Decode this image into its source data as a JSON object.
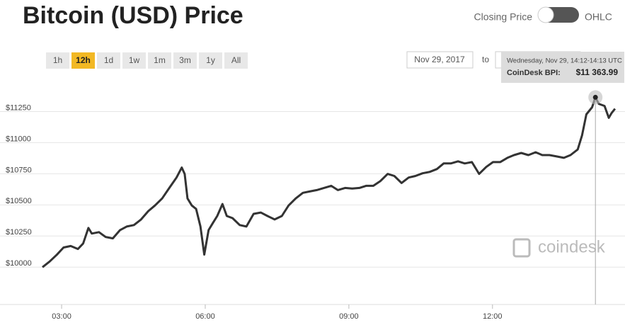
{
  "ui": {
    "title": "Bitcoin (USD) Price",
    "toggle": {
      "left": "Closing Price",
      "right": "OHLC"
    },
    "ranges": [
      "1h",
      "12h",
      "1d",
      "1w",
      "1m",
      "3m",
      "1y",
      "All"
    ],
    "active_range": 1,
    "date_from": "Nov 29, 2017",
    "date_to_label": "to",
    "watermark": "coindesk"
  },
  "chart_data": {
    "type": "line",
    "x": [
      2.6,
      2.75,
      2.9,
      3.04,
      3.19,
      3.34,
      3.45,
      3.56,
      3.63,
      3.78,
      3.92,
      4.07,
      4.22,
      4.36,
      4.51,
      4.66,
      4.81,
      4.95,
      5.1,
      5.25,
      5.4,
      5.51,
      5.57,
      5.63,
      5.72,
      5.81,
      5.9,
      5.98,
      6.07,
      6.16,
      6.25,
      6.36,
      6.45,
      6.57,
      6.72,
      6.86,
      7.01,
      7.16,
      7.3,
      7.45,
      7.6,
      7.74,
      7.89,
      8.04,
      8.18,
      8.33,
      8.48,
      8.63,
      8.77,
      8.92,
      9.07,
      9.22,
      9.36,
      9.51,
      9.66,
      9.81,
      9.95,
      10.1,
      10.25,
      10.39,
      10.54,
      10.69,
      10.84,
      10.98,
      11.13,
      11.28,
      11.42,
      11.57,
      11.72,
      11.87,
      12.01,
      12.16,
      12.31,
      12.45,
      12.6,
      12.75,
      12.9,
      13.04,
      13.19,
      13.34,
      13.49,
      13.63,
      13.78,
      13.87,
      13.96,
      14.08,
      14.15,
      14.22,
      14.34,
      14.43,
      14.49,
      14.56
    ],
    "series": [
      {
        "color": "#333333",
        "values": [
          10000,
          10045,
          10100,
          10158,
          10170,
          10146,
          10190,
          10315,
          10270,
          10281,
          10242,
          10231,
          10298,
          10326,
          10338,
          10383,
          10450,
          10495,
          10552,
          10636,
          10720,
          10800,
          10749,
          10552,
          10495,
          10467,
          10326,
          10101,
          10298,
          10355,
          10411,
          10507,
          10411,
          10394,
          10338,
          10326,
          10428,
          10439,
          10411,
          10383,
          10411,
          10495,
          10552,
          10597,
          10608,
          10619,
          10636,
          10653,
          10619,
          10636,
          10631,
          10636,
          10653,
          10653,
          10692,
          10749,
          10732,
          10676,
          10720,
          10732,
          10754,
          10765,
          10788,
          10833,
          10833,
          10850,
          10833,
          10844,
          10749,
          10805,
          10844,
          10844,
          10878,
          10900,
          10917,
          10900,
          10923,
          10900,
          10900,
          10889,
          10878,
          10900,
          10945,
          11058,
          11227,
          11284,
          11363.99,
          11312,
          11295,
          11199,
          11239,
          11272
        ]
      }
    ],
    "xlim": [
      2.6,
      14.62
    ],
    "xticks": [
      {
        "value": 3,
        "label": "03:00"
      },
      {
        "value": 6,
        "label": "06:00"
      },
      {
        "value": 9,
        "label": "09:00"
      },
      {
        "value": 12,
        "label": "12:00"
      }
    ],
    "ylim": [
      9700,
      11520
    ],
    "yticks": [
      {
        "value": 10000,
        "label": "$10000"
      },
      {
        "value": 10250,
        "label": "$10250"
      },
      {
        "value": 10500,
        "label": "$10500"
      },
      {
        "value": 10750,
        "label": "$10750"
      },
      {
        "value": 11000,
        "label": "$11000"
      },
      {
        "value": 11250,
        "label": "$11250"
      }
    ],
    "grid": true,
    "tooltip": {
      "date": "Wednesday, Nov 29, 14:12-14:13 UTC",
      "label": "CoinDesk BPI:",
      "x": 14.15,
      "value": 11363.99,
      "value_label": "$11 363.99"
    }
  }
}
